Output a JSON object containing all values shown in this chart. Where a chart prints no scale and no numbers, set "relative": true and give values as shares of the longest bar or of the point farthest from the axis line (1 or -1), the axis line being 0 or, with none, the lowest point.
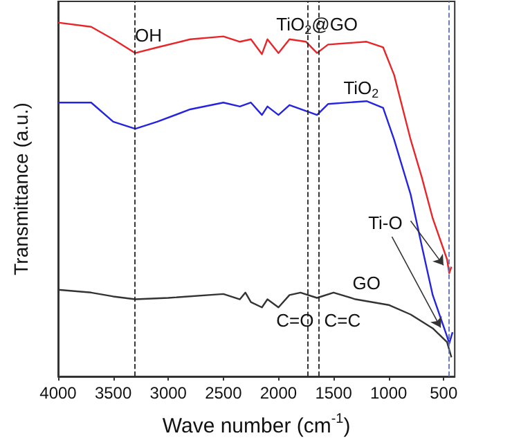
{
  "chart_data": {
    "type": "line",
    "relative": true,
    "xlabel": "Wave number (cm$^{-1}$)",
    "ylabel": "Transmittance (a.u.)",
    "xlim": [
      4000,
      400
    ],
    "xticks": [
      4000,
      3500,
      3000,
      2500,
      2000,
      1500,
      1000,
      500
    ],
    "grid": false,
    "marker": "none",
    "line_style": "solid",
    "series": [
      {
        "name": "TiO$_{2}$@GO",
        "color": "#e8262a",
        "x": [
          4000,
          3700,
          3500,
          3300,
          3100,
          2800,
          2500,
          2350,
          2250,
          2150,
          2100,
          2000,
          1900,
          1750,
          1650,
          1550,
          1200,
          1050,
          950,
          800,
          700,
          600,
          470,
          450,
          430
        ],
        "values": [
          1.0,
          0.988,
          0.953,
          0.914,
          0.93,
          0.953,
          0.961,
          0.946,
          0.953,
          0.911,
          0.953,
          0.914,
          0.953,
          0.946,
          0.914,
          0.938,
          0.946,
          0.93,
          0.852,
          0.669,
          0.564,
          0.447,
          0.331,
          0.292,
          0.31
        ]
      },
      {
        "name": "TiO$_{2}$",
        "color": "#2424e0",
        "x": [
          4000,
          3700,
          3500,
          3300,
          3100,
          2800,
          2500,
          2350,
          2250,
          2150,
          2100,
          2000,
          1900,
          1650,
          1550,
          1200,
          1050,
          950,
          800,
          700,
          600,
          470,
          450,
          420
        ],
        "values": [
          0.774,
          0.774,
          0.72,
          0.7,
          0.72,
          0.755,
          0.774,
          0.763,
          0.774,
          0.739,
          0.763,
          0.739,
          0.767,
          0.739,
          0.77,
          0.778,
          0.759,
          0.669,
          0.514,
          0.37,
          0.23,
          0.113,
          0.093,
          0.125
        ]
      },
      {
        "name": "GO",
        "color": "#333333",
        "x": [
          4000,
          3700,
          3500,
          3300,
          3000,
          2500,
          2350,
          2300,
          2250,
          2150,
          2100,
          2000,
          1900,
          1800,
          1650,
          1500,
          1300,
          1000,
          800,
          600,
          470,
          430
        ],
        "values": [
          0.245,
          0.237,
          0.226,
          0.218,
          0.222,
          0.233,
          0.218,
          0.237,
          0.21,
          0.195,
          0.218,
          0.195,
          0.23,
          0.237,
          0.222,
          0.237,
          0.218,
          0.202,
          0.175,
          0.136,
          0.097,
          0.054
        ]
      }
    ],
    "ref_lines": [
      {
        "axis": "x",
        "value": 3300,
        "label": "OH",
        "color": "#222222",
        "line_style": "dashed"
      },
      {
        "axis": "x",
        "value": 1740,
        "label": "C=O",
        "color": "#222222",
        "line_style": "dashed"
      },
      {
        "axis": "x",
        "value": 1630,
        "label": "C=C",
        "color": "#222222",
        "line_style": "dashed"
      },
      {
        "axis": "x",
        "value": 450,
        "label": "Ti-O",
        "color": "#5a6fb8",
        "line_style": "dashed"
      }
    ]
  }
}
